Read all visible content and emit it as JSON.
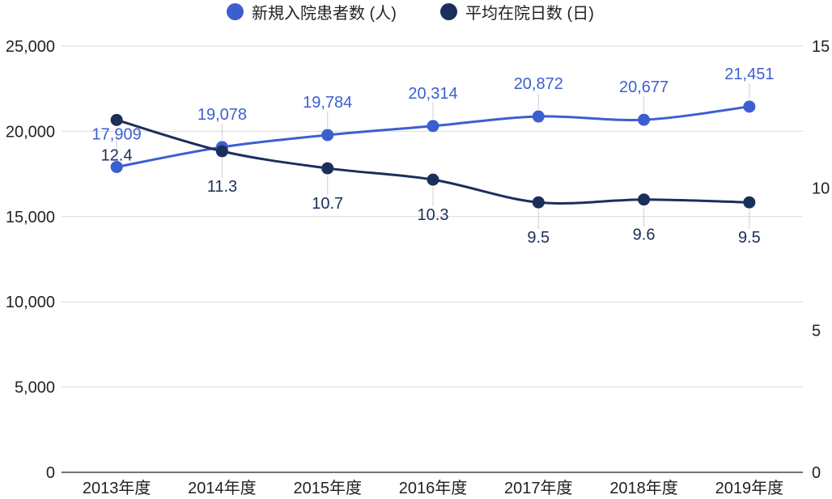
{
  "chart_data": {
    "type": "line",
    "categories": [
      "2013年度",
      "2014年度",
      "2015年度",
      "2016年度",
      "2017年度",
      "2018年度",
      "2019年度"
    ],
    "series": [
      {
        "name": "新規入院患者数 (人)",
        "axis": "left",
        "color": "#3c5fd0",
        "values": [
          17909,
          19078,
          19784,
          20314,
          20872,
          20677,
          21451
        ],
        "data_labels": [
          "17,909",
          "19,078",
          "19,784",
          "20,314",
          "20,872",
          "20,677",
          "21,451"
        ],
        "label_position": "above"
      },
      {
        "name": "平均在院日数 (日)",
        "axis": "right",
        "color": "#1b2f5b",
        "values": [
          12.4,
          11.3,
          10.7,
          10.3,
          9.5,
          9.6,
          9.5
        ],
        "data_labels": [
          "12.4",
          "11.3",
          "10.7",
          "10.3",
          "9.5",
          "9.6",
          "9.5"
        ],
        "label_position": "below"
      }
    ],
    "y_left": {
      "range": [
        0,
        25000
      ],
      "ticks": [
        {
          "value": 0,
          "label": "0"
        },
        {
          "value": 5000,
          "label": "5,000"
        },
        {
          "value": 10000,
          "label": "10,000"
        },
        {
          "value": 15000,
          "label": "15,000"
        },
        {
          "value": 20000,
          "label": "20,000"
        },
        {
          "value": 25000,
          "label": "25,000"
        }
      ]
    },
    "y_right": {
      "range": [
        0,
        15
      ],
      "ticks": [
        {
          "value": 0,
          "label": "0"
        },
        {
          "value": 5,
          "label": "5"
        },
        {
          "value": 10,
          "label": "10"
        },
        {
          "value": 15,
          "label": "15"
        }
      ]
    },
    "grid": true,
    "legend": "top",
    "curve": "smooth"
  }
}
